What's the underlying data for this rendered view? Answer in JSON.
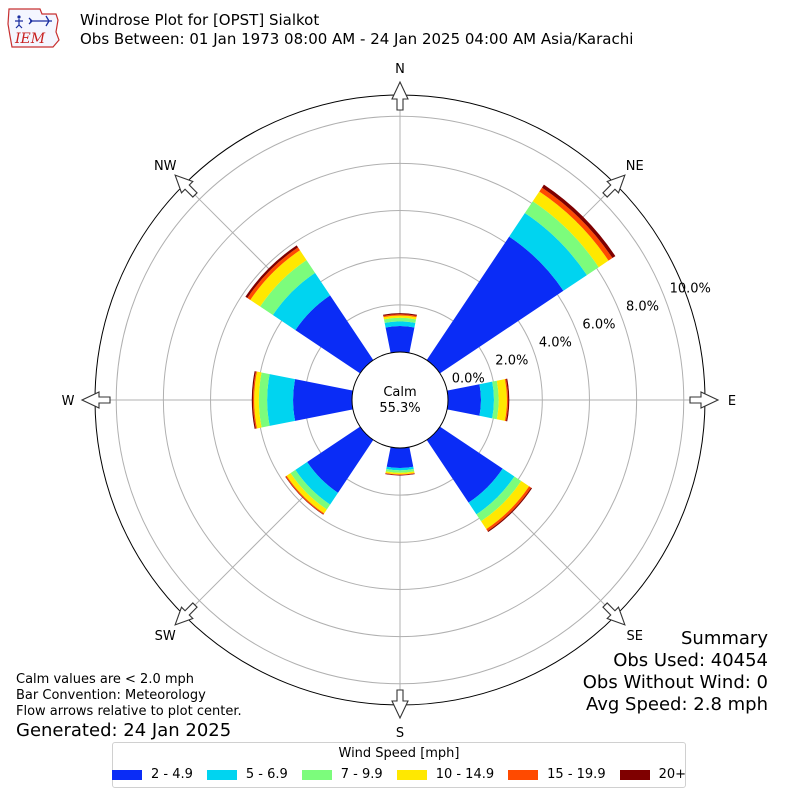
{
  "header": {
    "title": "Windrose Plot for [OPST] Sialkot",
    "subtitle": "Obs Between: 01 Jan 1973 08:00 AM - 24 Jan 2025 04:00 AM Asia/Karachi",
    "logo_text": "IEM"
  },
  "summary": {
    "heading": "Summary",
    "obs_used": "Obs Used: 40454",
    "obs_without_wind": "Obs Without Wind: 0",
    "avg_speed": "Avg Speed: 2.8 mph"
  },
  "notes": {
    "calm_note": "Calm values are < 2.0 mph",
    "bar_convention": "Bar Convention: Meteorology",
    "flow_arrows": "Flow arrows relative to plot center.",
    "generated": "Generated: 24 Jan 2025"
  },
  "chart_data": {
    "type": "windrose",
    "calm_label": "Calm",
    "calm_value": "55.3%",
    "directions": [
      "N",
      "NE",
      "E",
      "SE",
      "S",
      "SW",
      "W",
      "NW"
    ],
    "angles_deg": [
      0,
      45,
      90,
      135,
      180,
      225,
      270,
      315
    ],
    "radial_ticks": [
      "0.0%",
      "2.0%",
      "4.0%",
      "6.0%",
      "8.0%",
      "10.0%"
    ],
    "radial_tick_values": [
      0,
      2,
      4,
      6,
      8,
      10
    ],
    "radial_max": 10.9,
    "legend_title": "Wind Speed [mph]",
    "bins": [
      {
        "label": "2 - 4.9",
        "color": "#0a2cf6"
      },
      {
        "label": "5 - 6.9",
        "color": "#00d4f0"
      },
      {
        "label": "7 - 9.9",
        "color": "#7cfc7c"
      },
      {
        "label": "10 - 14.9",
        "color": "#ffe800"
      },
      {
        "label": "15 - 19.9",
        "color": "#ff4a00"
      },
      {
        "label": "20+",
        "color": "#7f0000"
      }
    ],
    "series_cumulative": [
      [
        1.1,
        1.3,
        1.45,
        1.55,
        1.6,
        1.65
      ],
      [
        6.3,
        7.5,
        8.1,
        8.6,
        8.8,
        8.95
      ],
      [
        1.4,
        1.95,
        2.15,
        2.5,
        2.55,
        2.6
      ],
      [
        3.2,
        3.8,
        4.15,
        4.55,
        4.65,
        4.7
      ],
      [
        0.85,
        0.95,
        1.05,
        1.12,
        1.15,
        1.17
      ],
      [
        2.7,
        3.3,
        3.55,
        3.75,
        3.8,
        3.82
      ],
      [
        2.5,
        3.6,
        3.95,
        4.15,
        4.2,
        4.25
      ],
      [
        3.3,
        4.45,
        5.1,
        5.6,
        5.75,
        5.85
      ]
    ]
  }
}
